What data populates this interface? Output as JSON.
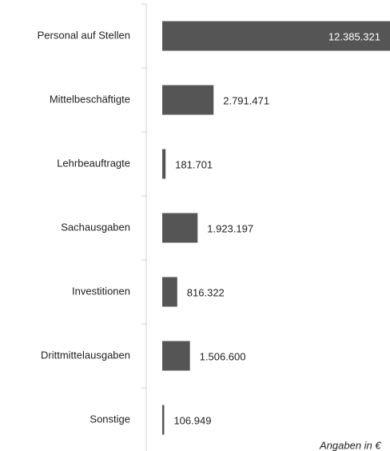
{
  "chart_data": {
    "type": "bar",
    "orientation": "horizontal",
    "categories": [
      "Personal auf Stellen",
      "Mittelbeschäftigte",
      "Lehrbeauftragte",
      "Sachausgaben",
      "Investitionen",
      "Drittmittelausgaben",
      "Sonstige"
    ],
    "values": [
      12385321,
      2791471,
      181701,
      1923197,
      816322,
      1506600,
      106949
    ],
    "value_labels": [
      "12.385.321",
      "2.791.471",
      "181.701",
      "1.923.197",
      "816.322",
      "1.506.600",
      "106.949"
    ],
    "color": "#555555",
    "annotation": "Angaben in €"
  }
}
